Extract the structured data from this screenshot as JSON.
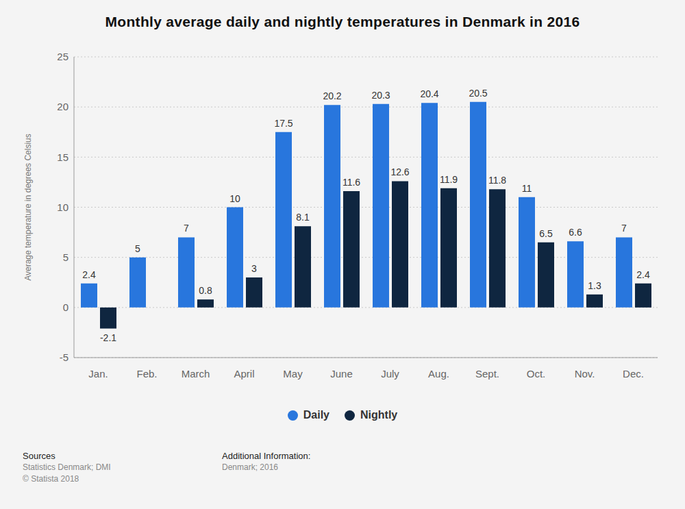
{
  "chart_data": {
    "type": "bar",
    "title": "Monthly average daily and nightly temperatures in Denmark in 2016",
    "y_label": "Average temperature in degrees Celsius",
    "categories": [
      "Jan.",
      "Feb.",
      "March",
      "April",
      "May",
      "June",
      "July",
      "Aug.",
      "Sept.",
      "Oct.",
      "Nov.",
      "Dec."
    ],
    "series": [
      {
        "name": "Daily",
        "color": "#2876dd",
        "values": [
          2.4,
          5,
          7,
          10,
          17.5,
          20.2,
          20.3,
          20.4,
          20.5,
          11,
          6.6,
          7
        ]
      },
      {
        "name": "Nightly",
        "color": "#0f2640",
        "values": [
          -2.1,
          0,
          0.8,
          3,
          8.1,
          11.6,
          12.6,
          11.9,
          11.8,
          6.5,
          1.3,
          2.4
        ]
      }
    ],
    "ylim": [
      -5,
      25
    ],
    "yticks": [
      -5,
      0,
      5,
      10,
      15,
      20,
      25
    ],
    "grid": true,
    "data_labels": true,
    "legend": "bottom",
    "annotations": [
      {
        "title": "Sources",
        "lines": [
          "Statistics Denmark; DMI",
          "© Statista 2018"
        ]
      },
      {
        "title": "Additional Information:",
        "lines": [
          "Denmark; 2016"
        ]
      }
    ]
  }
}
